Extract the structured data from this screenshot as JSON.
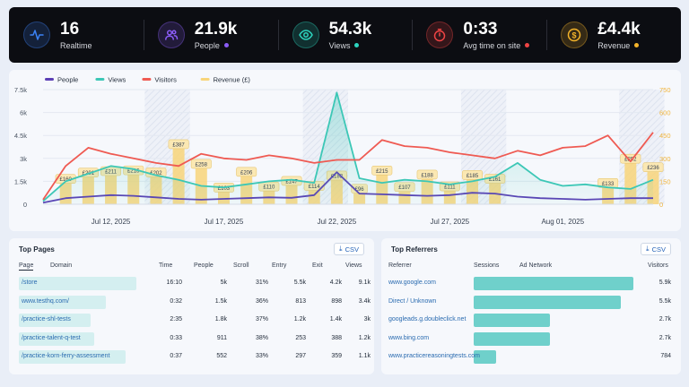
{
  "kpis": [
    {
      "value": "16",
      "label": "Realtime",
      "icon": "pulse-icon",
      "color": "#3b82f6",
      "dot": ""
    },
    {
      "value": "21.9k",
      "label": "People",
      "icon": "people-icon",
      "color": "#8b5cf6",
      "dot": "#8b5cf6"
    },
    {
      "value": "54.3k",
      "label": "Views",
      "icon": "eye-icon",
      "color": "#2dd4bf",
      "dot": "#2dd4bf"
    },
    {
      "value": "0:33",
      "label": "Avg time on site",
      "icon": "timer-icon",
      "color": "#ef4444",
      "dot": "#ef4444"
    },
    {
      "value": "£4.4k",
      "label": "Revenue",
      "icon": "pound-coin-icon",
      "color": "#f5b42a",
      "dot": "#f5b42a"
    }
  ],
  "chart_data": {
    "type": "line",
    "legend": [
      {
        "name": "People",
        "color": "#5b3fb5"
      },
      {
        "name": "Views",
        "color": "#3cc7b6"
      },
      {
        "name": "Visitors",
        "color": "#ef5a52"
      },
      {
        "name": "Revenue (£)",
        "color": "#f8d57a"
      }
    ],
    "left_ticks": [
      "0",
      "1.5k",
      "3k",
      "4.5k",
      "6k",
      "7.5k"
    ],
    "right_ticks": [
      "0",
      "150",
      "300",
      "450",
      "600",
      "750"
    ],
    "ylim_left": [
      0,
      7500
    ],
    "ylim_right": [
      0,
      750
    ],
    "x_labels": [
      {
        "label": "Jul 12, 2025",
        "index": 3
      },
      {
        "label": "Jul 17, 2025",
        "index": 8
      },
      {
        "label": "Jul 22, 2025",
        "index": 13
      },
      {
        "label": "Jul 27, 2025",
        "index": 18
      },
      {
        "label": "Aug 01, 2025",
        "index": 23
      }
    ],
    "n": 28,
    "weekend_index": [
      5,
      6,
      12,
      13,
      19,
      20,
      26,
      27
    ],
    "series": [
      {
        "name": "People",
        "color": "#5b3fb5",
        "values": [
          100,
          400,
          500,
          600,
          550,
          450,
          350,
          300,
          350,
          400,
          450,
          420,
          600,
          2100,
          700,
          650,
          600,
          550,
          600,
          750,
          700,
          500,
          400,
          350,
          300,
          350,
          400,
          400
        ]
      },
      {
        "name": "Views",
        "color": "#3cc7b6",
        "values": [
          200,
          1500,
          2000,
          2500,
          2300,
          1900,
          1600,
          1200,
          1100,
          1300,
          1500,
          1600,
          1400,
          7300,
          1700,
          1400,
          1600,
          1500,
          1300,
          1500,
          1800,
          2700,
          1600,
          1200,
          1300,
          1100,
          1000,
          1600
        ]
      },
      {
        "name": "Visitors",
        "color": "#ef5a52",
        "values": [
          300,
          2500,
          3700,
          3300,
          3000,
          2700,
          2500,
          3300,
          3000,
          2900,
          3200,
          3000,
          2700,
          2900,
          2900,
          4200,
          3800,
          3700,
          3400,
          3200,
          3000,
          3500,
          3200,
          3700,
          3800,
          4500,
          2800,
          4700
        ]
      }
    ],
    "revenue": [
      {
        "value": 0,
        "label": ""
      },
      {
        "value": 160,
        "label": "£160"
      },
      {
        "value": 201,
        "label": "£201"
      },
      {
        "value": 211,
        "label": "£211"
      },
      {
        "value": 216,
        "label": "£216"
      },
      {
        "value": 202,
        "label": "£202"
      },
      {
        "value": 387,
        "label": "£387"
      },
      {
        "value": 258,
        "label": "£258"
      },
      {
        "value": 103,
        "label": "£103"
      },
      {
        "value": 206,
        "label": "£206"
      },
      {
        "value": 110,
        "label": "£110"
      },
      {
        "value": 147,
        "label": "£147"
      },
      {
        "value": 114,
        "label": "£114"
      },
      {
        "value": 182,
        "label": "£182"
      },
      {
        "value": 96,
        "label": "£96"
      },
      {
        "value": 215,
        "label": "£215"
      },
      {
        "value": 107,
        "label": "£107"
      },
      {
        "value": 188,
        "label": "£188"
      },
      {
        "value": 111,
        "label": "£111"
      },
      {
        "value": 185,
        "label": "£185"
      },
      {
        "value": 161,
        "label": "£161"
      },
      {
        "value": 0,
        "label": ""
      },
      {
        "value": 0,
        "label": ""
      },
      {
        "value": 0,
        "label": ""
      },
      {
        "value": 0,
        "label": ""
      },
      {
        "value": 133,
        "label": "£133"
      },
      {
        "value": 292,
        "label": "£292"
      },
      {
        "value": 236,
        "label": "£236"
      }
    ]
  },
  "top_pages": {
    "title": "Top Pages",
    "csv_label": "CSV",
    "headers": {
      "page": "Page",
      "domain": "Domain",
      "time": "Time",
      "people": "People",
      "scroll": "Scroll",
      "entry": "Entry",
      "exit": "Exit",
      "views": "Views"
    },
    "rows": [
      {
        "page": "/store",
        "time": "16:10",
        "people": "5k",
        "scroll": "31%",
        "entry": "5.5k",
        "exit": "4.2k",
        "views": "9.1k",
        "share": 1.0
      },
      {
        "page": "www.testhq.com/",
        "time": "0:32",
        "people": "1.5k",
        "scroll": "36%",
        "entry": "813",
        "exit": "898",
        "views": "3.4k",
        "share": 0.74
      },
      {
        "page": "/practice-shl-tests",
        "time": "2:35",
        "people": "1.8k",
        "scroll": "37%",
        "entry": "1.2k",
        "exit": "1.4k",
        "views": "3k",
        "share": 0.61
      },
      {
        "page": "/practice-talent-q-test",
        "time": "0:33",
        "people": "911",
        "scroll": "38%",
        "entry": "253",
        "exit": "388",
        "views": "1.2k",
        "share": 0.64
      },
      {
        "page": "/practice-korn-ferry-assessment",
        "time": "0:37",
        "people": "552",
        "scroll": "33%",
        "entry": "297",
        "exit": "359",
        "views": "1.1k",
        "share": 0.91
      }
    ]
  },
  "top_referrers": {
    "title": "Top Referrers",
    "csv_label": "CSV",
    "headers": {
      "referrer": "Referrer",
      "sessions": "Sessions",
      "ad_network": "Ad Network",
      "visitors": "Visitors"
    },
    "rows": [
      {
        "name": "www.google.com",
        "visitors": "5.9k",
        "share": 1.0
      },
      {
        "name": "Direct / Unknown",
        "visitors": "5.5k",
        "share": 0.92
      },
      {
        "name": "googleads.g.doubleclick.net",
        "visitors": "2.7k",
        "share": 0.48
      },
      {
        "name": "www.bing.com",
        "visitors": "2.7k",
        "share": 0.48
      },
      {
        "name": "www.practicereasoningtests.com",
        "visitors": "784",
        "share": 0.14
      }
    ]
  }
}
